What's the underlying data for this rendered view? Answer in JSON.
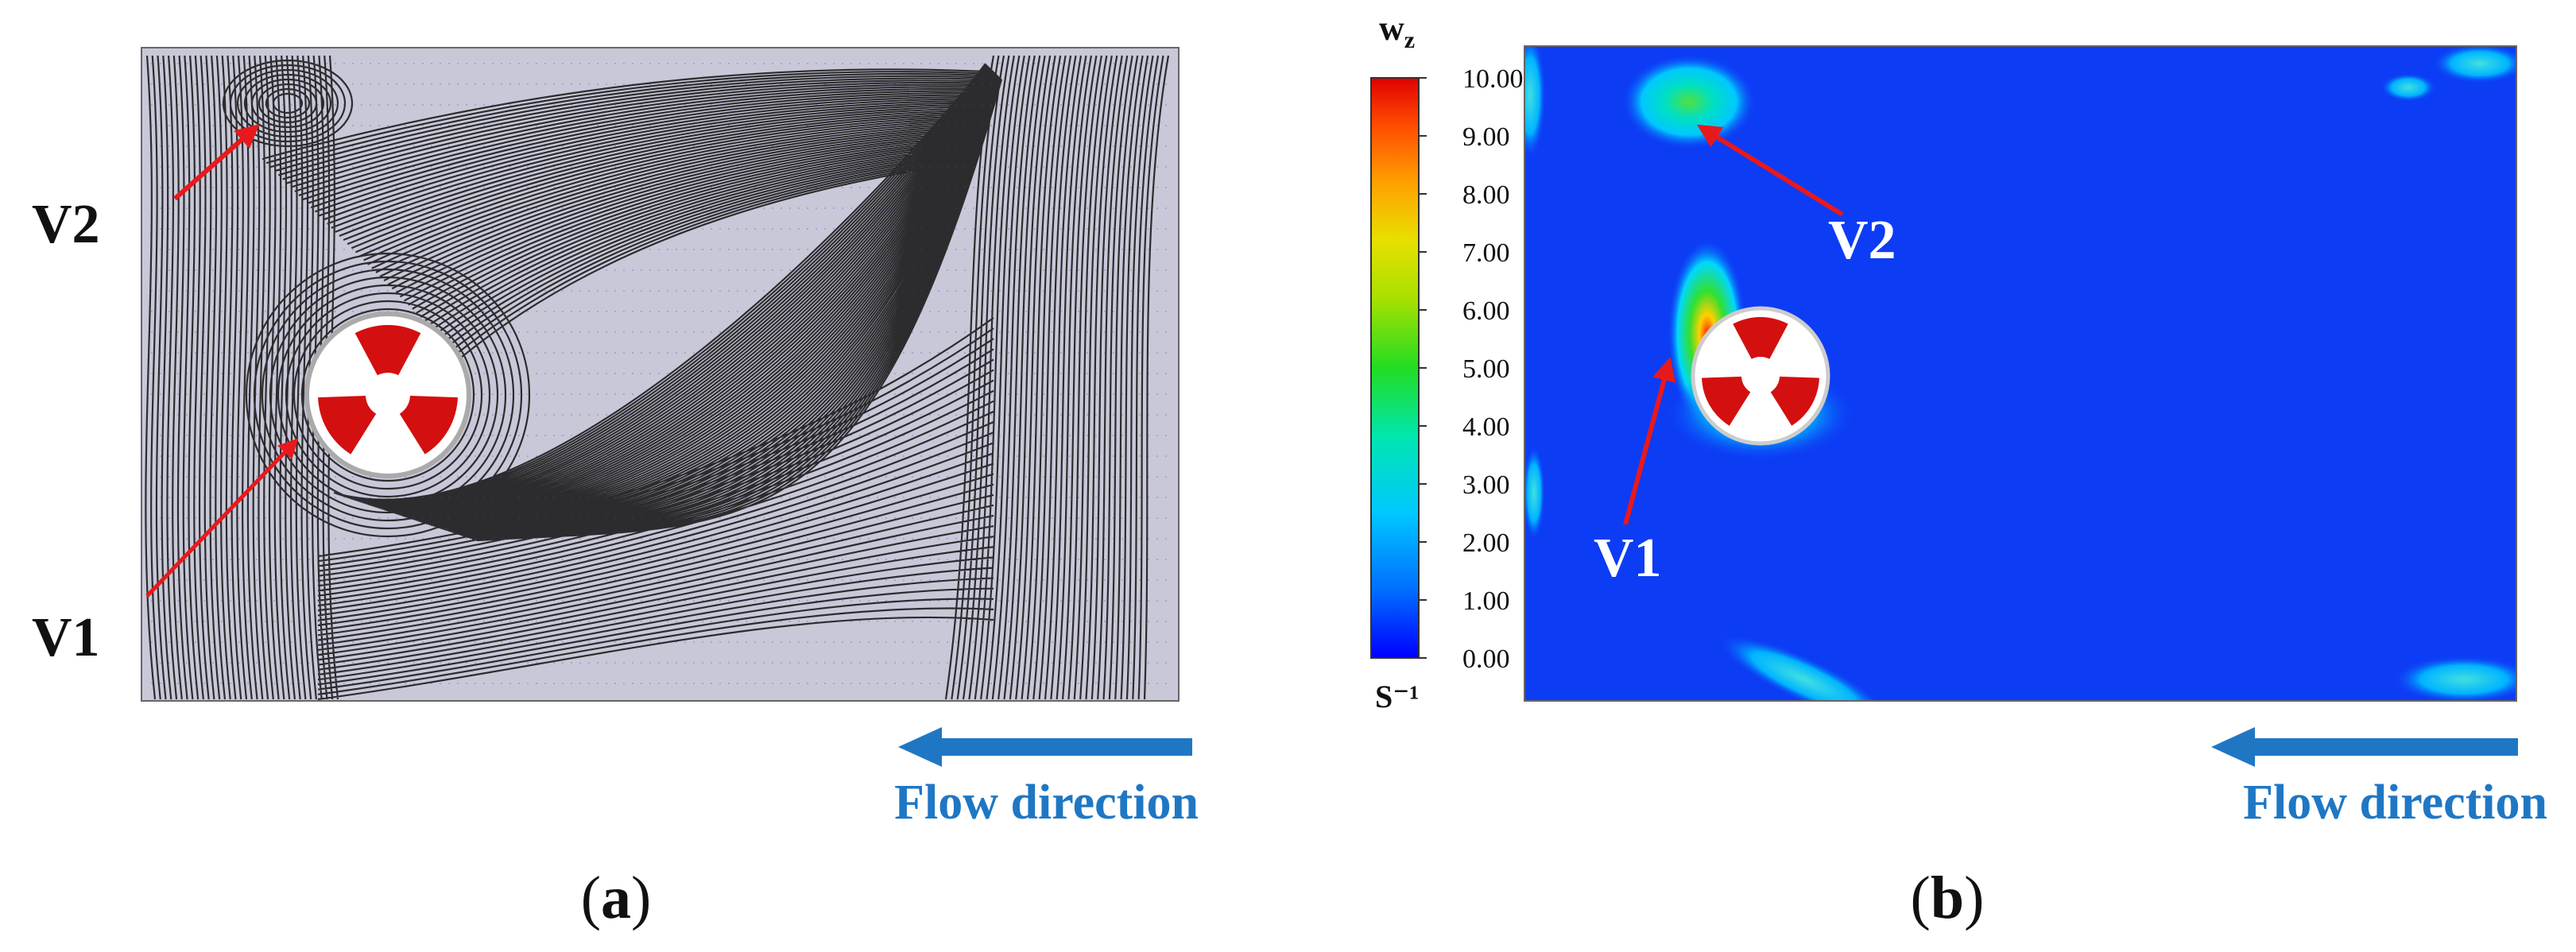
{
  "panel_a": {
    "caption_open": "(",
    "caption_letter": "a",
    "caption_close": ")",
    "vortex_labels": [
      "V2",
      "V1"
    ],
    "flow_label": "Flow direction"
  },
  "panel_b": {
    "caption_open": "(",
    "caption_letter": "b",
    "caption_close": ")",
    "vortex_labels": [
      "V2",
      "V1"
    ],
    "flow_label": "Flow direction",
    "colorbar": {
      "title": "w",
      "title_sub": "z",
      "unit": "S⁻¹",
      "ticks": [
        "10.00",
        "9.00",
        "8.00",
        "7.00",
        "6.00",
        "5.00",
        "4.00",
        "3.00",
        "2.00",
        "1.00",
        "0.00"
      ],
      "colors": [
        "#0000ff",
        "#00a0ff",
        "#00e5e5",
        "#00e070",
        "#7fe000",
        "#e0e000",
        "#ffa000",
        "#ff4000",
        "#e00000"
      ]
    }
  },
  "colors": {
    "arrow_red": "#e8191c",
    "flow_blue": "#1f77c4",
    "field_blue": "#0d3cf5",
    "rotor_red": "#d40f0f",
    "rotor_dark": "#8b0000"
  }
}
